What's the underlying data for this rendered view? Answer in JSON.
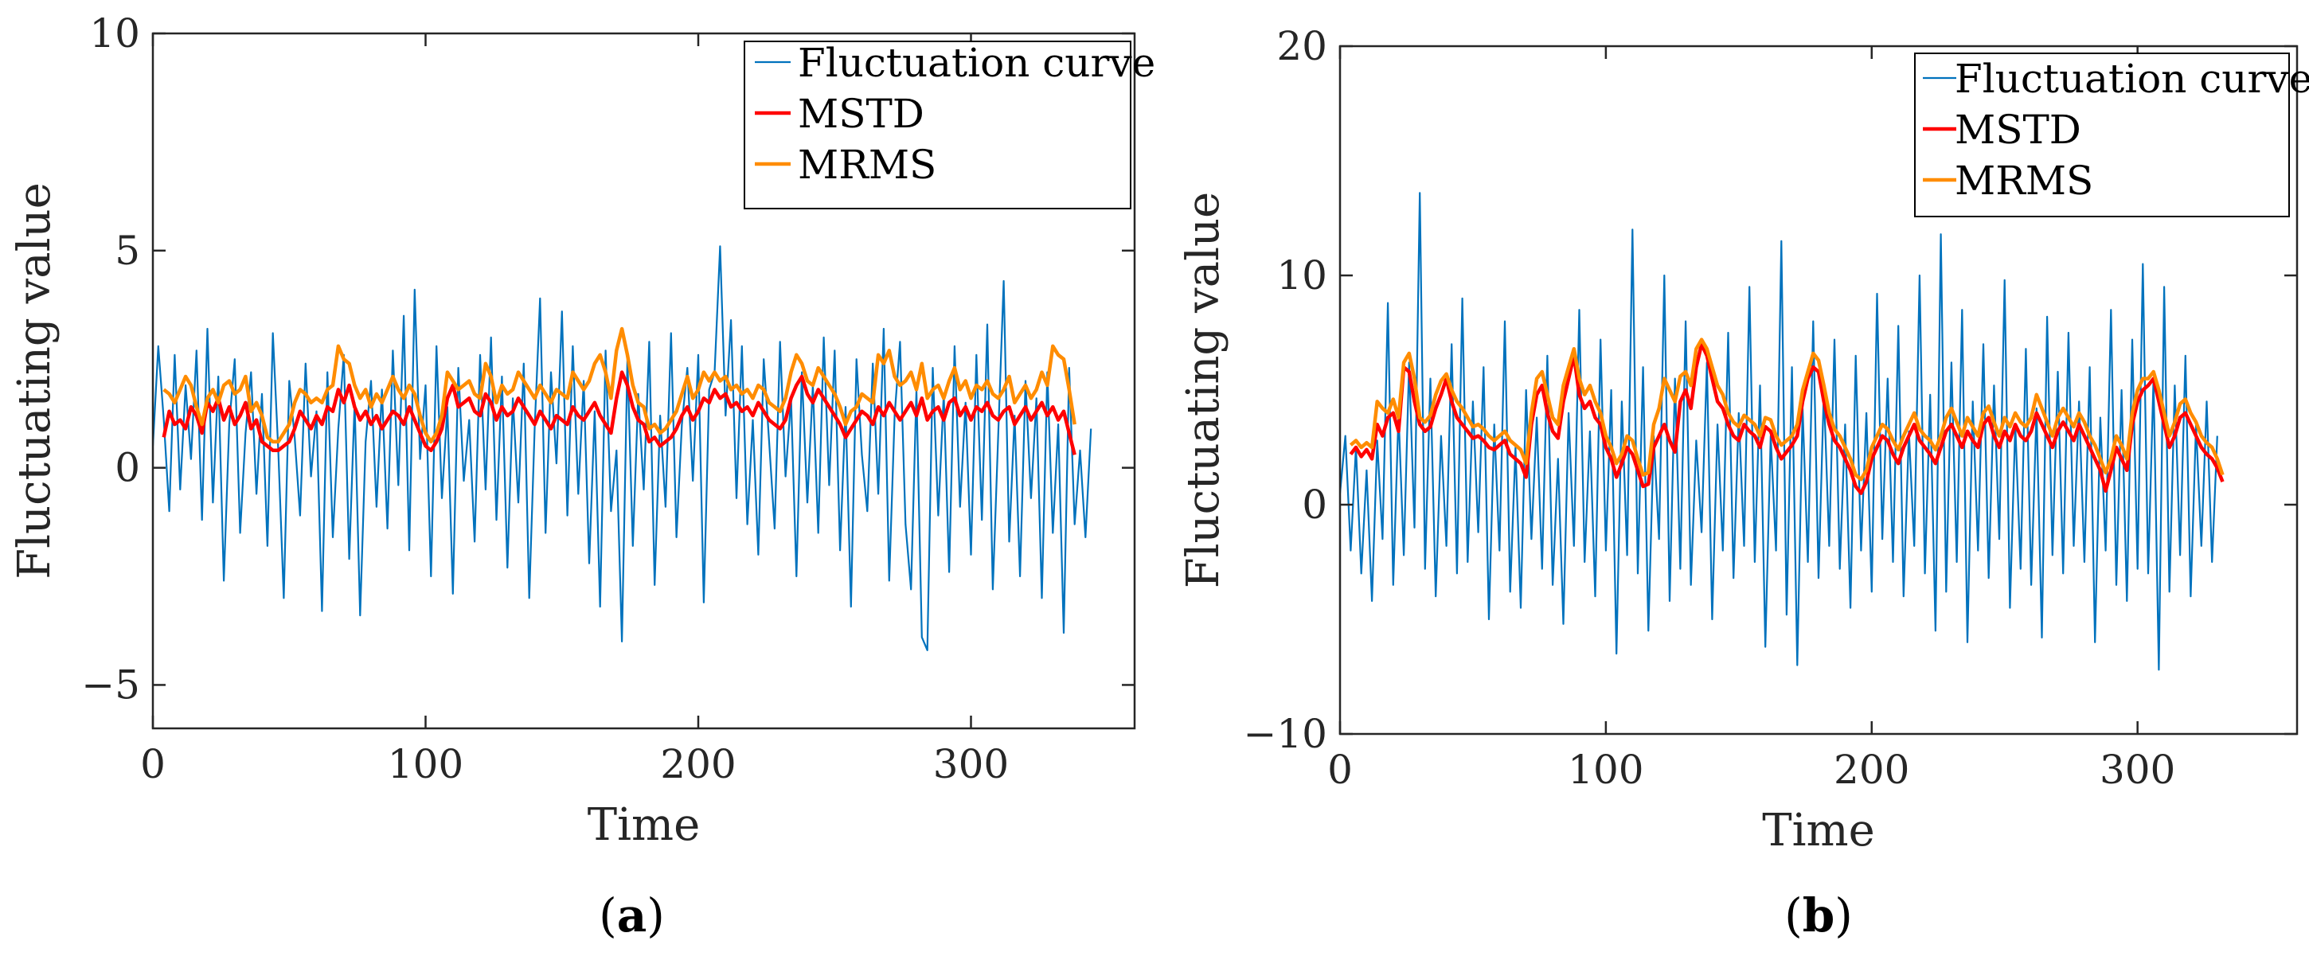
{
  "colors": {
    "fluctuation": "#0072BD",
    "mstd": "#FF0000",
    "mrms": "#FF8C00",
    "axis": "#262626"
  },
  "chart_data": [
    {
      "type": "line",
      "panel": "a",
      "caption": {
        "open": "(",
        "letter": "a",
        "close": ")"
      },
      "xlabel": "Time",
      "ylabel": "Fluctuating value",
      "xlim": [
        0,
        360
      ],
      "ylim": [
        -6,
        10
      ],
      "xticks": [
        0,
        100,
        200,
        300
      ],
      "yticks": [
        -5,
        0,
        5,
        10
      ],
      "ytick_labels": [
        "−5",
        "0",
        "5",
        "10"
      ],
      "legend_position": "top-right",
      "series": [
        {
          "name": "Fluctuation curve",
          "key": "fluctuation",
          "x_start": 0,
          "x_step": 2,
          "values": [
            0.5,
            2.8,
            1.1,
            -1.0,
            2.6,
            -0.5,
            1.9,
            0.2,
            2.7,
            -1.2,
            3.2,
            -0.8,
            2.1,
            -2.6,
            1.0,
            2.5,
            -1.5,
            0.8,
            2.2,
            -0.6,
            1.7,
            -1.8,
            3.1,
            0.4,
            -3.0,
            2.0,
            0.7,
            -1.1,
            2.4,
            -0.2,
            1.3,
            -3.3,
            2.2,
            -1.6,
            0.9,
            2.6,
            -2.1,
            1.5,
            -3.4,
            0.6,
            2.0,
            -0.9,
            1.8,
            -1.4,
            2.7,
            -0.4,
            3.5,
            -1.9,
            4.1,
            0.2,
            1.9,
            -2.5,
            2.8,
            -0.7,
            1.4,
            -2.9,
            2.3,
            -0.3,
            1.1,
            -1.7,
            2.6,
            -0.5,
            3.0,
            -1.2,
            2.1,
            -2.3,
            1.6,
            -0.8,
            2.4,
            -3.0,
            0.9,
            3.9,
            -1.5,
            2.2,
            0.1,
            3.6,
            -1.1,
            2.8,
            -0.6,
            2.0,
            -2.2,
            1.3,
            -3.2,
            2.7,
            -1.0,
            0.4,
            -4.0,
            2.5,
            -1.8,
            1.7,
            -0.5,
            2.9,
            -2.7,
            1.2,
            -0.9,
            3.1,
            -1.6,
            1.0,
            2.3,
            -0.3,
            2.6,
            -3.1,
            1.8,
            2.2,
            5.1,
            1.2,
            3.4,
            -0.7,
            2.8,
            -1.3,
            1.1,
            -2.0,
            2.5,
            0.6,
            -1.4,
            2.9,
            -0.2,
            1.6,
            -2.5,
            2.2,
            -0.8,
            1.9,
            -1.5,
            3.0,
            -0.4,
            2.7,
            -1.9,
            1.4,
            -3.2,
            2.5,
            0.3,
            -1.0,
            2.4,
            -0.6,
            3.2,
            -2.6,
            1.2,
            2.9,
            -1.3,
            -2.8,
            1.8,
            -3.9,
            -4.2,
            2.3,
            -1.1,
            1.7,
            -2.4,
            2.8,
            -0.9,
            1.5,
            -2.0,
            2.6,
            -1.2,
            3.3,
            -2.8,
            0.8,
            4.3,
            -1.7,
            1.2,
            -2.5,
            2.0,
            -0.7,
            1.6,
            -3.0,
            2.2,
            -1.5,
            1.0,
            -3.8,
            2.3,
            -1.3,
            0.4,
            -1.6,
            0.9
          ]
        },
        {
          "name": "MSTD",
          "key": "mstd",
          "x_start": 4,
          "x_step": 2,
          "values": [
            0.7,
            1.3,
            1.0,
            1.1,
            0.9,
            1.4,
            1.2,
            0.8,
            1.5,
            1.3,
            1.6,
            1.1,
            1.4,
            1.0,
            1.2,
            1.5,
            0.9,
            1.1,
            0.6,
            0.5,
            0.4,
            0.4,
            0.5,
            0.6,
            0.9,
            1.3,
            1.1,
            0.9,
            1.2,
            1.0,
            1.4,
            1.3,
            1.8,
            1.5,
            1.9,
            1.4,
            1.1,
            1.3,
            1.0,
            1.2,
            0.9,
            1.1,
            1.3,
            1.2,
            1.0,
            1.4,
            1.1,
            0.8,
            0.5,
            0.4,
            0.6,
            0.9,
            1.6,
            1.9,
            1.4,
            1.5,
            1.6,
            1.3,
            1.2,
            1.7,
            1.5,
            1.1,
            1.4,
            1.2,
            1.3,
            1.6,
            1.4,
            1.2,
            1.0,
            1.3,
            1.1,
            0.9,
            1.2,
            1.1,
            1.0,
            1.4,
            1.2,
            1.1,
            1.3,
            1.5,
            1.2,
            1.0,
            0.8,
            1.6,
            2.2,
            1.9,
            1.4,
            1.1,
            1.0,
            0.6,
            0.7,
            0.5,
            0.6,
            0.7,
            0.9,
            1.2,
            1.4,
            1.1,
            1.3,
            1.6,
            1.5,
            1.8,
            1.6,
            1.7,
            1.4,
            1.5,
            1.3,
            1.4,
            1.2,
            1.5,
            1.3,
            1.1,
            1.0,
            0.9,
            1.1,
            1.6,
            1.9,
            2.1,
            1.7,
            1.5,
            1.8,
            1.6,
            1.4,
            1.2,
            1.0,
            0.7,
            0.9,
            1.1,
            1.3,
            1.2,
            1.0,
            1.4,
            1.2,
            1.5,
            1.3,
            1.1,
            1.3,
            1.5,
            1.2,
            1.6,
            1.1,
            1.3,
            1.4,
            1.1,
            1.5,
            1.6,
            1.2,
            1.4,
            1.1,
            1.4,
            1.3,
            1.5,
            1.2,
            1.1,
            1.3,
            1.4,
            1.0,
            1.2,
            1.4,
            1.1,
            1.3,
            1.5,
            1.2,
            1.4,
            1.1,
            1.3,
            0.8,
            0.3
          ]
        },
        {
          "name": "MRMS",
          "key": "mrms",
          "x_start": 4,
          "x_step": 2,
          "values": [
            1.8,
            1.7,
            1.5,
            1.8,
            2.1,
            1.9,
            1.4,
            1.0,
            1.6,
            1.8,
            1.5,
            1.9,
            2.0,
            1.7,
            1.8,
            2.1,
            1.3,
            1.5,
            1.2,
            0.7,
            0.6,
            0.6,
            0.8,
            1.0,
            1.5,
            1.8,
            1.7,
            1.5,
            1.6,
            1.5,
            1.8,
            1.9,
            2.8,
            2.5,
            2.4,
            1.9,
            1.6,
            1.8,
            1.4,
            1.7,
            1.5,
            1.8,
            2.1,
            1.8,
            1.6,
            1.9,
            1.7,
            1.2,
            0.8,
            0.6,
            0.8,
            1.2,
            2.2,
            2.0,
            1.8,
            1.9,
            2.0,
            1.7,
            1.6,
            2.4,
            2.1,
            1.5,
            1.9,
            1.7,
            1.8,
            2.2,
            2.0,
            1.8,
            1.6,
            1.9,
            1.7,
            1.5,
            1.8,
            1.7,
            1.6,
            2.2,
            2.0,
            1.8,
            2.0,
            2.4,
            2.6,
            2.2,
            1.6,
            2.7,
            3.2,
            2.6,
            1.9,
            1.5,
            1.4,
            0.9,
            1.0,
            0.8,
            0.9,
            1.1,
            1.3,
            1.7,
            2.1,
            1.6,
            1.8,
            2.2,
            2.0,
            2.2,
            2.0,
            2.1,
            1.8,
            1.9,
            1.7,
            1.8,
            1.6,
            1.9,
            1.8,
            1.5,
            1.4,
            1.3,
            1.6,
            2.2,
            2.6,
            2.4,
            2.0,
            1.9,
            2.3,
            2.1,
            1.9,
            1.7,
            1.4,
            1.0,
            1.3,
            1.4,
            1.7,
            1.6,
            1.5,
            2.6,
            2.4,
            2.7,
            2.1,
            1.9,
            2.0,
            2.2,
            1.8,
            2.4,
            1.6,
            1.8,
            1.9,
            1.6,
            2.0,
            2.3,
            1.8,
            2.0,
            1.6,
            1.9,
            1.8,
            2.0,
            1.7,
            1.6,
            1.8,
            2.1,
            1.5,
            1.7,
            1.9,
            1.6,
            1.8,
            2.2,
            1.9,
            2.8,
            2.6,
            2.5,
            1.8,
            1.0
          ]
        }
      ]
    },
    {
      "type": "line",
      "panel": "b",
      "caption": {
        "open": "(",
        "letter": "b",
        "close": ")"
      },
      "xlabel": "Time",
      "ylabel": "Fluctuating value",
      "xlim": [
        0,
        360
      ],
      "ylim": [
        -10,
        20
      ],
      "xticks": [
        0,
        100,
        200,
        300
      ],
      "yticks": [
        -10,
        0,
        10,
        20
      ],
      "ytick_labels": [
        "−10",
        "0",
        "10",
        "20"
      ],
      "legend_position": "top-right",
      "series": [
        {
          "name": "Fluctuation curve",
          "key": "fluctuation",
          "x_start": 0,
          "x_step": 2,
          "values": [
            0.5,
            3.0,
            -2.0,
            2.5,
            -3.0,
            1.5,
            -4.2,
            2.8,
            -1.5,
            8.8,
            -3.5,
            4.0,
            -2.2,
            6.2,
            -1.0,
            13.6,
            -2.8,
            5.5,
            -4.0,
            3.0,
            -1.8,
            7.0,
            -3.0,
            9.0,
            -2.5,
            4.5,
            -1.2,
            6.0,
            -5.0,
            3.5,
            -2.0,
            8.0,
            -3.8,
            2.5,
            -4.5,
            5.0,
            -1.5,
            3.8,
            -2.8,
            6.5,
            -3.5,
            2.0,
            -5.2,
            4.0,
            -1.8,
            8.5,
            -2.5,
            3.2,
            -4.0,
            7.2,
            -2.0,
            5.0,
            -6.5,
            4.5,
            -2.2,
            12.0,
            -3.0,
            6.0,
            -5.5,
            3.0,
            -1.5,
            10.0,
            -4.2,
            5.5,
            -2.8,
            8.0,
            -3.5,
            2.8,
            -1.2,
            6.2,
            -5.0,
            3.5,
            -2.0,
            7.5,
            -3.2,
            4.0,
            -1.8,
            9.5,
            -2.5,
            5.2,
            -6.2,
            3.0,
            -2.0,
            11.5,
            -4.8,
            6.0,
            -7.0,
            4.2,
            -2.5,
            8.0,
            -3.2,
            5.0,
            -1.8,
            7.2,
            -2.8,
            3.5,
            -4.5,
            6.5,
            -2.0,
            4.0,
            -3.8,
            9.2,
            -1.5,
            5.5,
            -2.5,
            7.8,
            -4.0,
            3.2,
            -1.8,
            10.0,
            -3.0,
            4.8,
            -5.5,
            11.8,
            -3.8,
            6.2,
            -2.5,
            8.5,
            -6.0,
            4.5,
            -2.0,
            7.0,
            -3.2,
            5.2,
            -1.5,
            9.8,
            -4.5,
            3.5,
            -2.8,
            6.8,
            -3.5,
            4.2,
            -5.8,
            8.2,
            -2.2,
            5.8,
            -3.0,
            7.5,
            -1.8,
            4.5,
            -2.5,
            6.0,
            -6.0,
            3.8,
            -2.0,
            8.5,
            -3.5,
            5.0,
            -4.2,
            7.2,
            -2.8,
            10.5,
            -3.0,
            5.5,
            -7.2,
            9.5,
            -3.8,
            5.2,
            -2.2,
            6.5,
            -4.0,
            3.5,
            -1.8,
            4.5,
            -2.5,
            3.0
          ]
        },
        {
          "name": "MSTD",
          "key": "mstd",
          "x_start": 4,
          "x_step": 2,
          "values": [
            2.2,
            2.5,
            2.1,
            2.4,
            2.0,
            3.5,
            3.0,
            3.8,
            4.0,
            3.2,
            6.0,
            5.8,
            4.5,
            3.5,
            3.2,
            3.4,
            4.2,
            4.8,
            5.5,
            4.5,
            3.8,
            3.5,
            3.2,
            2.9,
            3.0,
            2.8,
            2.5,
            2.4,
            2.6,
            2.8,
            2.2,
            2.0,
            1.8,
            1.2,
            3.5,
            4.8,
            5.2,
            4.0,
            3.2,
            2.9,
            4.5,
            5.5,
            6.5,
            4.8,
            4.2,
            4.5,
            3.8,
            3.5,
            2.5,
            2.0,
            1.2,
            1.8,
            2.5,
            2.2,
            1.5,
            0.8,
            0.9,
            2.5,
            3.0,
            3.5,
            2.8,
            2.3,
            4.5,
            5.0,
            4.2,
            6.0,
            7.0,
            6.5,
            5.5,
            4.5,
            4.2,
            3.5,
            3.0,
            2.8,
            3.5,
            3.2,
            3.0,
            2.5,
            3.4,
            3.2,
            2.5,
            2.0,
            2.3,
            2.6,
            3.0,
            4.5,
            5.5,
            6.0,
            5.8,
            4.5,
            3.5,
            2.8,
            2.5,
            2.0,
            1.5,
            0.8,
            0.5,
            1.0,
            2.0,
            2.5,
            3.0,
            2.8,
            2.2,
            1.8,
            2.5,
            3.0,
            3.5,
            2.8,
            2.5,
            2.2,
            1.8,
            2.5,
            3.2,
            3.5,
            3.0,
            2.5,
            3.2,
            2.8,
            2.5,
            3.5,
            3.8,
            3.0,
            2.5,
            3.2,
            2.8,
            3.5,
            3.0,
            2.8,
            3.2,
            4.0,
            3.5,
            3.0,
            2.5,
            3.2,
            3.6,
            3.2,
            2.8,
            3.5,
            3.0,
            2.5,
            2.0,
            1.5,
            0.6,
            1.5,
            2.5,
            2.0,
            1.5,
            3.5,
            4.5,
            5.0,
            5.2,
            5.5,
            4.5,
            3.5,
            2.5,
            3.0,
            3.8,
            4.0,
            3.5,
            3.0,
            2.5,
            2.2,
            2.0,
            1.6,
            1.0
          ]
        },
        {
          "name": "MRMS",
          "key": "mrms",
          "x_start": 4,
          "x_step": 2,
          "values": [
            2.6,
            2.8,
            2.5,
            2.7,
            2.5,
            4.5,
            4.2,
            4.0,
            4.6,
            3.8,
            6.2,
            6.6,
            5.5,
            3.8,
            3.6,
            3.9,
            4.8,
            5.4,
            5.7,
            5.0,
            4.5,
            4.2,
            3.8,
            3.4,
            3.5,
            3.3,
            3.0,
            2.8,
            3.0,
            3.2,
            2.8,
            2.6,
            2.4,
            1.8,
            4.0,
            5.5,
            5.8,
            4.8,
            3.8,
            3.5,
            5.2,
            6.0,
            6.8,
            5.5,
            4.8,
            5.2,
            4.5,
            4.0,
            3.0,
            2.5,
            1.8,
            2.2,
            3.0,
            2.8,
            2.0,
            1.3,
            1.4,
            3.5,
            4.2,
            5.5,
            5.0,
            4.5,
            5.6,
            5.8,
            5.2,
            6.8,
            7.2,
            6.8,
            6.0,
            5.2,
            4.8,
            4.0,
            3.6,
            3.4,
            3.9,
            3.7,
            3.5,
            3.0,
            3.8,
            3.7,
            3.0,
            2.6,
            2.8,
            3.0,
            3.5,
            5.0,
            5.8,
            6.6,
            6.3,
            5.2,
            4.0,
            3.3,
            3.0,
            2.5,
            2.0,
            1.3,
            1.1,
            1.5,
            2.5,
            3.0,
            3.5,
            3.3,
            2.8,
            2.4,
            3.0,
            3.5,
            4.0,
            3.3,
            3.0,
            2.8,
            2.4,
            3.0,
            3.8,
            4.2,
            3.6,
            3.0,
            3.8,
            3.4,
            3.0,
            4.0,
            4.3,
            3.6,
            3.0,
            3.8,
            3.4,
            4.0,
            3.6,
            3.4,
            3.8,
            4.8,
            4.2,
            3.6,
            3.0,
            3.8,
            4.2,
            3.8,
            3.4,
            4.0,
            3.6,
            3.0,
            2.6,
            2.0,
            1.4,
            2.0,
            3.0,
            2.6,
            2.0,
            4.0,
            5.0,
            5.5,
            5.5,
            5.8,
            5.0,
            4.0,
            3.0,
            3.6,
            4.4,
            4.6,
            4.0,
            3.6,
            3.0,
            2.7,
            2.5,
            2.0,
            1.3
          ]
        }
      ]
    }
  ]
}
